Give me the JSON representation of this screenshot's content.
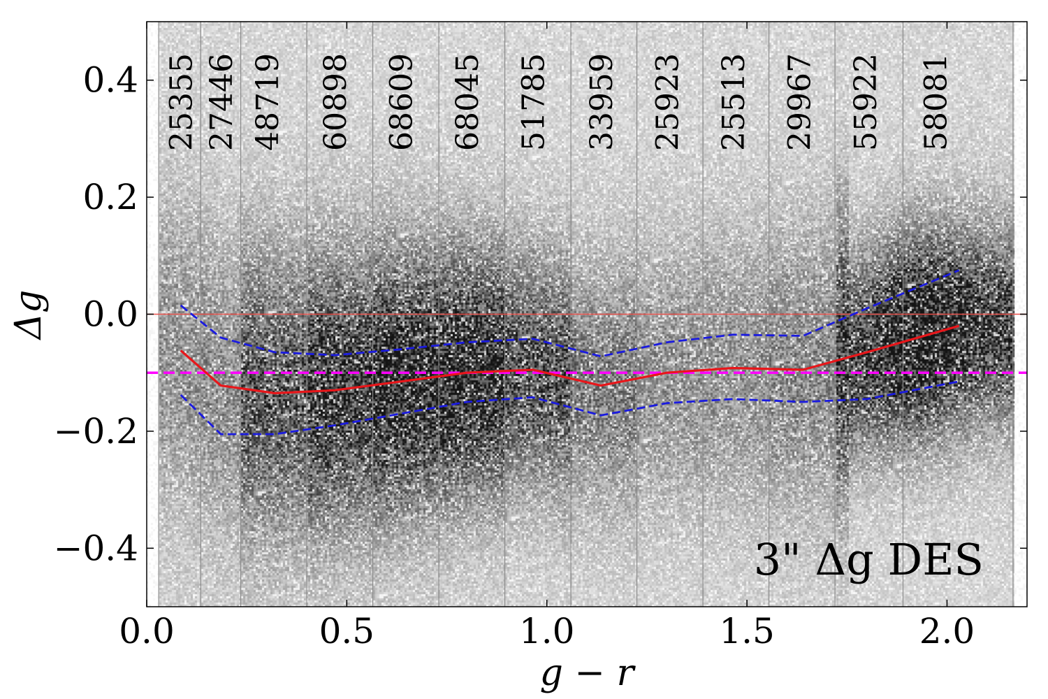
{
  "chart_data": {
    "type": "scatter",
    "subtype": "2d-density-histogram-with-lines",
    "xlabel": "g − r",
    "ylabel": "Δg",
    "xlim": [
      0.0,
      2.2
    ],
    "ylim": [
      -0.5,
      0.5
    ],
    "x_ticks": [
      0.0,
      0.5,
      1.0,
      1.5,
      2.0
    ],
    "x_tick_labels": [
      "0.0",
      "0.5",
      "1.0",
      "1.5",
      "2.0"
    ],
    "y_ticks": [
      -0.4,
      -0.2,
      0.0,
      0.2,
      0.4
    ],
    "y_tick_labels": [
      "−0.4",
      "−0.2",
      "0.0",
      "0.2",
      "0.4"
    ],
    "annotation": "3\" Δg DES",
    "bin_edges": [
      0.03,
      0.135,
      0.235,
      0.4,
      0.565,
      0.73,
      0.895,
      1.06,
      1.225,
      1.39,
      1.555,
      1.72,
      1.89,
      2.165
    ],
    "bin_counts": [
      "25355",
      "27446",
      "48719",
      "60898",
      "68609",
      "68045",
      "51785",
      "33959",
      "25923",
      "25513",
      "29967",
      "55922",
      "58081"
    ],
    "bin_count_x": [
      0.085,
      0.185,
      0.3,
      0.47,
      0.635,
      0.8,
      0.965,
      1.135,
      1.3,
      1.465,
      1.63,
      1.795,
      1.97
    ],
    "series": [
      {
        "name": "median",
        "color": "#e8161a",
        "style": "solid",
        "x": [
          0.085,
          0.185,
          0.32,
          0.47,
          0.635,
          0.8,
          0.965,
          1.135,
          1.3,
          1.465,
          1.64,
          1.8,
          2.03
        ],
        "y": [
          -0.062,
          -0.122,
          -0.135,
          -0.13,
          -0.115,
          -0.1,
          -0.095,
          -0.122,
          -0.1,
          -0.092,
          -0.095,
          -0.065,
          -0.02
        ]
      },
      {
        "name": "upper",
        "color": "#1a1ae0",
        "style": "dashed",
        "x": [
          0.085,
          0.185,
          0.32,
          0.47,
          0.635,
          0.8,
          0.965,
          1.135,
          1.3,
          1.465,
          1.64,
          1.8,
          2.03
        ],
        "y": [
          0.015,
          -0.04,
          -0.065,
          -0.07,
          -0.06,
          -0.048,
          -0.042,
          -0.072,
          -0.048,
          -0.035,
          -0.037,
          0.01,
          0.075
        ]
      },
      {
        "name": "lower",
        "color": "#1a1ae0",
        "style": "dashed",
        "x": [
          0.085,
          0.185,
          0.32,
          0.47,
          0.635,
          0.8,
          0.965,
          1.135,
          1.3,
          1.465,
          1.64,
          1.8,
          2.03
        ],
        "y": [
          -0.138,
          -0.205,
          -0.205,
          -0.19,
          -0.17,
          -0.15,
          -0.142,
          -0.173,
          -0.152,
          -0.145,
          -0.15,
          -0.145,
          -0.115
        ]
      }
    ],
    "reference_lines": [
      {
        "name": "zero",
        "y": 0.0,
        "color": "#e8504a",
        "style": "solid"
      },
      {
        "name": "offset",
        "y": -0.1,
        "color": "#ff00ff",
        "style": "dashed"
      }
    ]
  }
}
